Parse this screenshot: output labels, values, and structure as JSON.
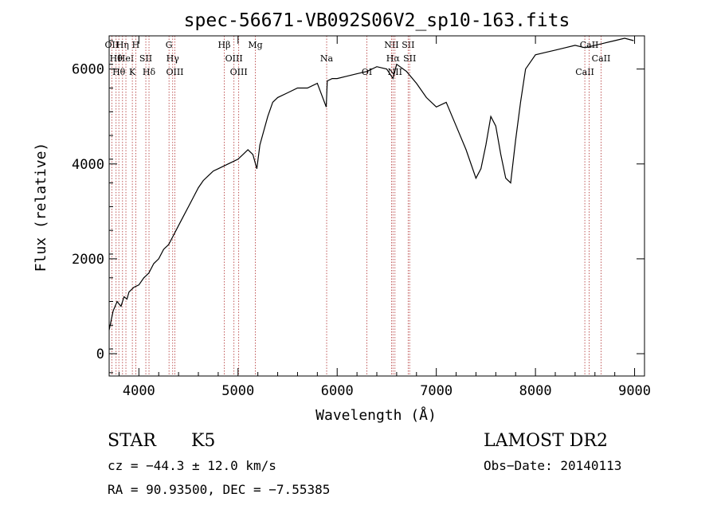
{
  "chart_data": {
    "type": "line",
    "title": "spec-56671-VB092S06V2_sp10-163.fits",
    "xlabel": "Wavelength (Å)",
    "ylabel": "Flux (relative)",
    "xlim": [
      3700,
      9100
    ],
    "ylim": [
      -470,
      6700
    ],
    "xticks": [
      4000,
      5000,
      6000,
      7000,
      8000,
      9000
    ],
    "yticks": [
      0,
      2000,
      4000,
      6000
    ],
    "grid": false,
    "line_color": "#000000",
    "marker_color": "#b03030",
    "series": [
      {
        "x": [
          3700,
          3740,
          3780,
          3820,
          3850,
          3880,
          3900,
          3950,
          4000,
          4050,
          4100,
          4150,
          4200,
          4250,
          4300,
          4350,
          4400,
          4450,
          4500,
          4550,
          4600,
          4650,
          4700,
          4750,
          4800,
          4850,
          4900,
          4950,
          5000,
          5050,
          5100,
          5150,
          5190,
          5220,
          5300,
          5350,
          5400,
          5500,
          5600,
          5700,
          5800,
          5890,
          5900,
          5950,
          6000,
          6100,
          6200,
          6300,
          6400,
          6500,
          6563,
          6600,
          6700,
          6800,
          6900,
          7000,
          7100,
          7200,
          7300,
          7400,
          7450,
          7500,
          7550,
          7600,
          7650,
          7700,
          7750,
          7800,
          7850,
          7900,
          8000,
          8100,
          8200,
          8300,
          8400,
          8500,
          8600,
          8700,
          8800,
          8900,
          8990
        ],
        "values": [
          500,
          900,
          1100,
          1000,
          1200,
          1150,
          1300,
          1400,
          1450,
          1600,
          1700,
          1900,
          2000,
          2200,
          2300,
          2500,
          2700,
          2900,
          3100,
          3300,
          3500,
          3650,
          3750,
          3850,
          3900,
          3950,
          4000,
          4050,
          4100,
          4200,
          4300,
          4200,
          3900,
          4400,
          5000,
          5300,
          5400,
          5500,
          5600,
          5600,
          5700,
          5200,
          5750,
          5800,
          5800,
          5850,
          5900,
          5950,
          6050,
          6000,
          5800,
          6100,
          5950,
          5700,
          5400,
          5200,
          5300,
          4800,
          4300,
          3700,
          3900,
          4400,
          5000,
          4800,
          4200,
          3700,
          3600,
          4500,
          5300,
          6000,
          6300,
          6350,
          6400,
          6450,
          6500,
          6450,
          6500,
          6550,
          6600,
          6650,
          6600
        ]
      }
    ],
    "lines": [
      {
        "x": 3727,
        "labels": [
          "OII"
        ]
      },
      {
        "x": 3770,
        "labels": [
          "Hθ"
        ]
      },
      {
        "x": 3798,
        "labels": [
          "Hθ"
        ]
      },
      {
        "x": 3835,
        "labels": [
          "Hη"
        ]
      },
      {
        "x": 3869,
        "labels": [
          "HeI"
        ]
      },
      {
        "x": 3934,
        "labels": [
          "K"
        ]
      },
      {
        "x": 3969,
        "labels": [
          "H"
        ]
      },
      {
        "x": 4070,
        "labels": [
          "SII"
        ]
      },
      {
        "x": 4102,
        "labels": [
          "Hδ"
        ]
      },
      {
        "x": 4304,
        "labels": [
          "G"
        ]
      },
      {
        "x": 4341,
        "labels": [
          "Hγ"
        ]
      },
      {
        "x": 4363,
        "labels": [
          "OIII"
        ]
      },
      {
        "x": 4861,
        "labels": [
          "Hβ"
        ]
      },
      {
        "x": 4959,
        "labels": [
          "OIII"
        ]
      },
      {
        "x": 5007,
        "labels": [
          "OIII"
        ]
      },
      {
        "x": 5175,
        "labels": [
          "Mg"
        ]
      },
      {
        "x": 5894,
        "labels": [
          "Na"
        ]
      },
      {
        "x": 6300,
        "labels": [
          "OI"
        ]
      },
      {
        "x": 6548,
        "labels": [
          "NII"
        ]
      },
      {
        "x": 6563,
        "labels": [
          "Hα"
        ]
      },
      {
        "x": 6583,
        "labels": [
          "NII"
        ]
      },
      {
        "x": 6716,
        "labels": [
          "SII"
        ]
      },
      {
        "x": 6731,
        "labels": [
          "SII"
        ]
      },
      {
        "x": 8498,
        "labels": [
          "CaII"
        ]
      },
      {
        "x": 8542,
        "labels": [
          "CaII"
        ]
      },
      {
        "x": 8662,
        "labels": [
          "CaII"
        ]
      }
    ]
  },
  "info": {
    "object_class": "STAR",
    "subclass": "K5",
    "survey": "LAMOST DR2",
    "redshift": "cz = −44.3 ± 12.0 km/s",
    "obs_date": "Obs−Date: 20140113",
    "coords": "RA =  90.93500, DEC =  −7.55385"
  }
}
